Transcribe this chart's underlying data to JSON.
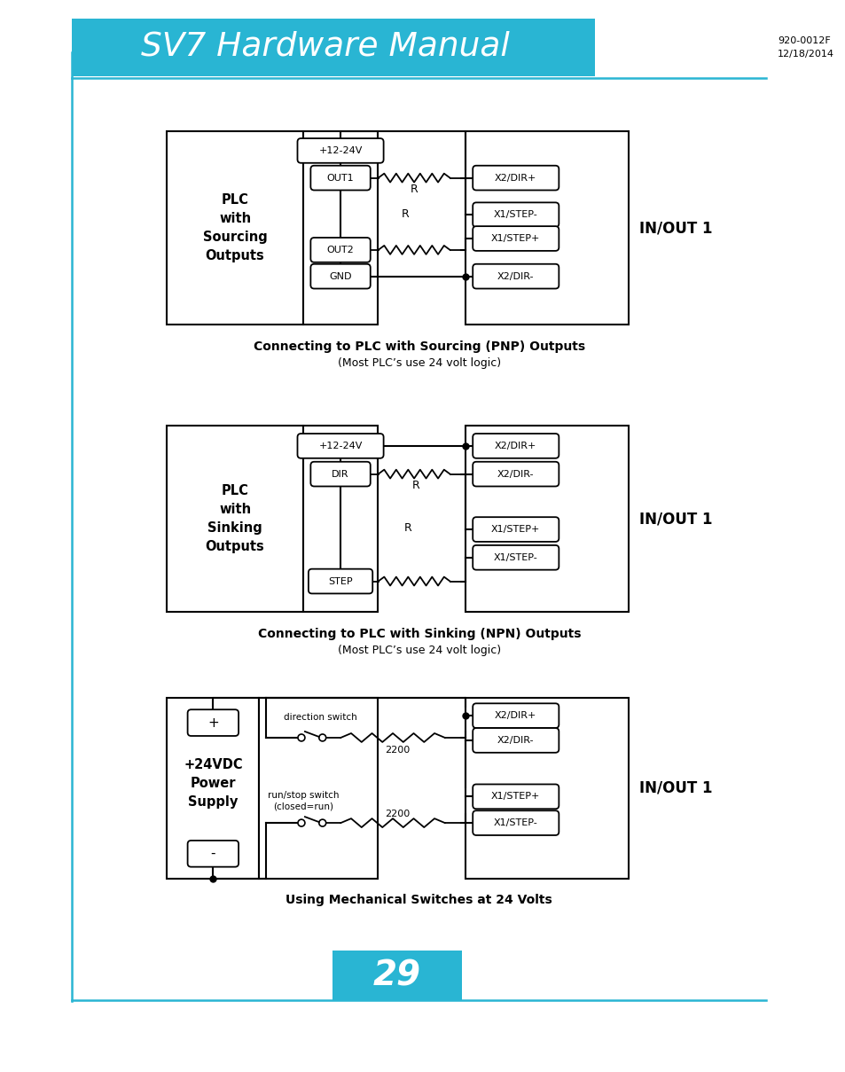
{
  "title": "SV7 Hardware Manual",
  "title_color": "#ffffff",
  "header_bg": "#29b5d3",
  "date_line1": "920-0012F",
  "date_line2": "12/18/2014",
  "page_number": "29",
  "diagram1_caption": "Connecting to PLC with Sourcing (PNP) Outputs",
  "diagram1_subcaption": "(Most PLC’s use 24 volt logic)",
  "diagram2_caption": "Connecting to PLC with Sinking (NPN) Outputs",
  "diagram2_subcaption": "(Most PLC’s use 24 volt logic)",
  "diagram3_caption": "Using Mechanical Switches at 24 Volts",
  "bg_color": "#ffffff"
}
